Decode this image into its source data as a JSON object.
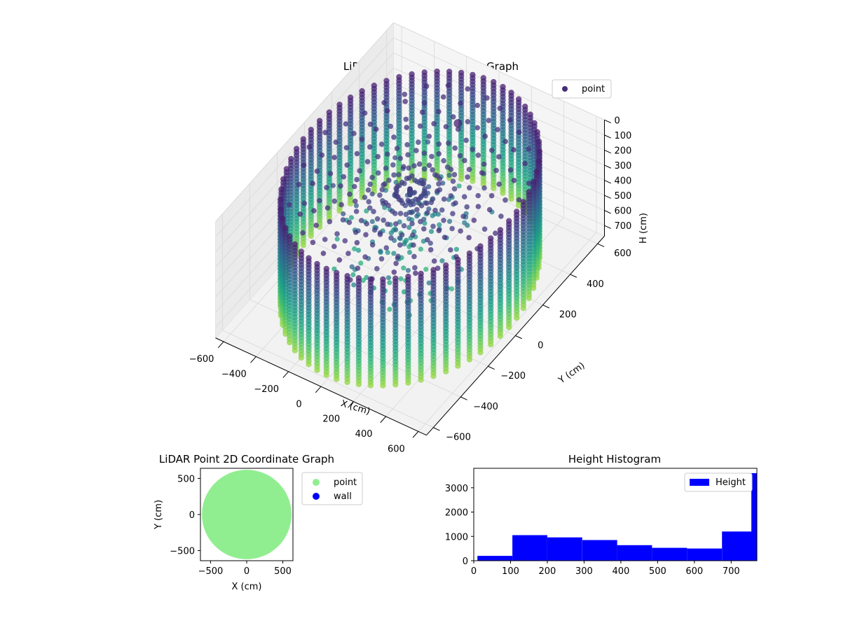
{
  "chart_data": [
    {
      "type": "scatter",
      "projection": "3d",
      "title": "LiDAR Point 3D Coordinate Graph",
      "xlabel": "X (cm)",
      "ylabel": "Y (cm)",
      "zlabel": "H (cm)",
      "xlim": [
        -650,
        650
      ],
      "ylim": [
        -650,
        650
      ],
      "zlim": [
        0,
        770
      ],
      "z_inverted": true,
      "x_ticks": [
        "−600",
        "−400",
        "−200",
        "0",
        "200",
        "400",
        "600"
      ],
      "y_ticks": [
        "−600",
        "−400",
        "−200",
        "0",
        "200",
        "400",
        "600"
      ],
      "z_ticks": [
        "0",
        "100",
        "200",
        "300",
        "400",
        "500",
        "600",
        "700"
      ],
      "x_tick_values": [
        -600,
        -400,
        -200,
        0,
        200,
        400,
        600
      ],
      "y_tick_values": [
        -600,
        -400,
        -200,
        0,
        200,
        400,
        600
      ],
      "z_tick_values": [
        0,
        100,
        200,
        300,
        400,
        500,
        600,
        700
      ],
      "colormap": "viridis",
      "legend": {
        "labels": [
          "point"
        ],
        "colors": [
          "#472c7a"
        ],
        "placement": "top-right"
      },
      "wall_radius": 610,
      "wall_columns": 64,
      "wall_height_range": [
        30,
        750
      ],
      "grid": true
    },
    {
      "type": "scatter",
      "title": "LiDAR Point 2D Coordinate Graph",
      "xlabel": "X (cm)",
      "ylabel": "Y (cm)",
      "xlim": [
        -640,
        640
      ],
      "ylim": [
        -640,
        640
      ],
      "x_ticks": [
        "−500",
        "0",
        "500"
      ],
      "y_ticks": [
        "−500",
        "0",
        "500"
      ],
      "x_tick_values": [
        -500,
        0,
        500
      ],
      "y_tick_values": [
        -500,
        0,
        500
      ],
      "legend": {
        "labels": [
          "point",
          "wall"
        ],
        "colors": [
          "#90ee90",
          "#0000ff"
        ],
        "placement": "outside-right"
      },
      "disc_radius": 620
    },
    {
      "type": "bar",
      "subtype": "histogram",
      "title": "Height Histogram",
      "xlim": [
        0,
        770
      ],
      "ylim": [
        0,
        3800
      ],
      "x_ticks": [
        "0",
        "100",
        "200",
        "300",
        "400",
        "500",
        "600",
        "700"
      ],
      "y_ticks": [
        "0",
        "1000",
        "2000",
        "3000"
      ],
      "x_tick_values": [
        0,
        100,
        200,
        300,
        400,
        500,
        600,
        700
      ],
      "y_tick_values": [
        0,
        1000,
        2000,
        3000
      ],
      "bin_edges": [
        10,
        105,
        200,
        295,
        390,
        485,
        580,
        675,
        770
      ],
      "values": [
        200,
        1050,
        960,
        850,
        640,
        530,
        500,
        1200
      ],
      "outlier_bin": {
        "edges": [
          755,
          770
        ],
        "value": 3600
      },
      "color": "#0000ff",
      "legend": {
        "labels": [
          "Height"
        ],
        "colors": [
          "#0000ff"
        ],
        "placement": "top-right"
      }
    }
  ]
}
